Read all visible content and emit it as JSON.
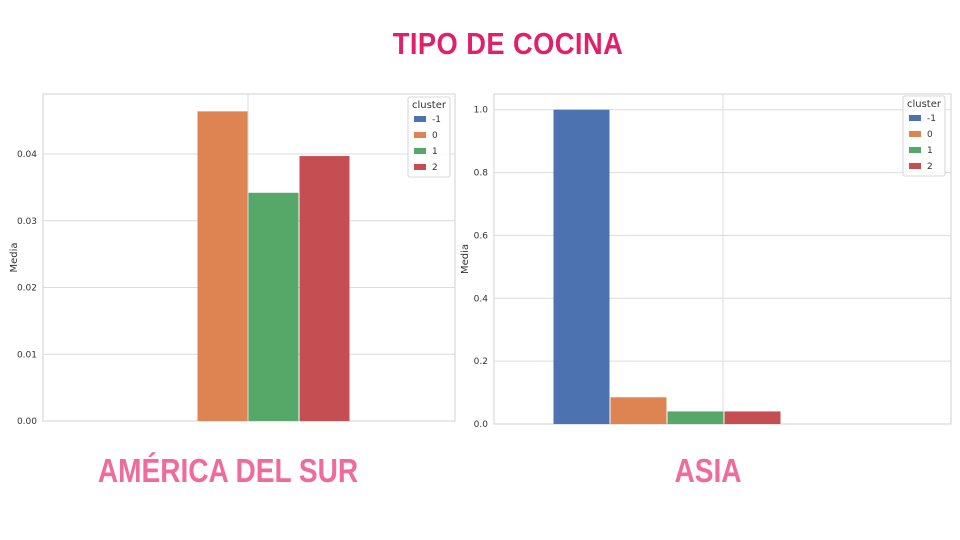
{
  "title": "TIPO DE COCINA",
  "chart_data": [
    {
      "type": "bar",
      "title": "",
      "caption": "AMÉRICA DEL SUR",
      "xlabel": "",
      "ylabel": "Media",
      "ylim": [
        0,
        0.049
      ],
      "yticks": [
        "0.00",
        "0.01",
        "0.02",
        "0.03",
        "0.04"
      ],
      "legend_title": "cluster",
      "legend_position": "top-right",
      "grid": true,
      "series": [
        {
          "name": "-1",
          "value": 0.0,
          "color": "#4c72b0"
        },
        {
          "name": "0",
          "value": 0.0464,
          "color": "#dd8452"
        },
        {
          "name": "1",
          "value": 0.0342,
          "color": "#55a868"
        },
        {
          "name": "2",
          "value": 0.0397,
          "color": "#c44e52"
        }
      ]
    },
    {
      "type": "bar",
      "title": "",
      "caption": "ASIA",
      "xlabel": "",
      "ylabel": "Media",
      "ylim": [
        0,
        1.05
      ],
      "yticks": [
        "0.0",
        "0.2",
        "0.4",
        "0.6",
        "0.8",
        "1.0"
      ],
      "legend_title": "cluster",
      "legend_position": "top-right",
      "grid": true,
      "series": [
        {
          "name": "-1",
          "value": 1.0,
          "color": "#4c72b0"
        },
        {
          "name": "0",
          "value": 0.085,
          "color": "#dd8452"
        },
        {
          "name": "1",
          "value": 0.04,
          "color": "#55a868"
        },
        {
          "name": "2",
          "value": 0.04,
          "color": "#c44e52"
        }
      ]
    }
  ]
}
